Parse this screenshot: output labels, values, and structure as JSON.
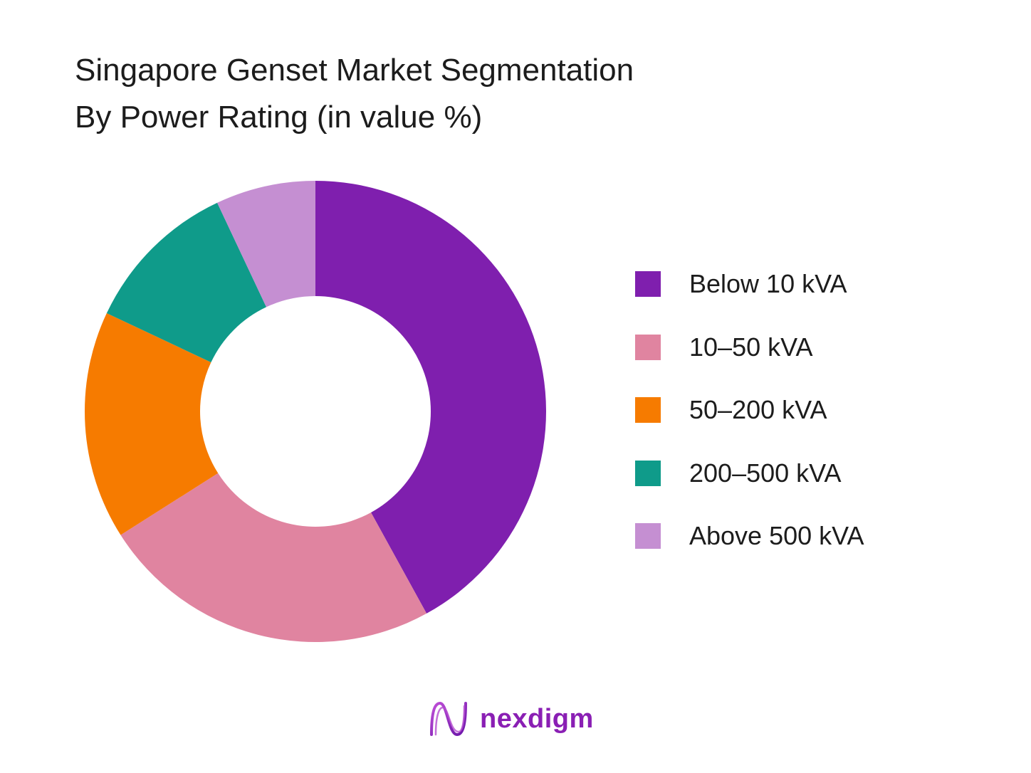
{
  "title": {
    "line1": "Singapore Genset Market Segmentation",
    "line2": "By Power Rating (in value %)"
  },
  "chart_data": {
    "type": "pie",
    "subtype": "donut",
    "title": "Singapore Genset Market Segmentation By Power Rating (in value %)",
    "categories": [
      "Below 10 kVA",
      "10–50 kVA",
      "50–200 kVA",
      "200–500 kVA",
      "Above 500 kVA"
    ],
    "values": [
      42,
      24,
      16,
      11,
      7
    ],
    "colors": [
      "#7f1fae",
      "#e084a0",
      "#f67b00",
      "#0f9b8a",
      "#c58fd2"
    ],
    "legend_position": "right",
    "data_labels": false
  },
  "brand": {
    "name": "nexdigm",
    "color": "#8a1fb4",
    "icon": "nexdigm-logo-icon"
  }
}
